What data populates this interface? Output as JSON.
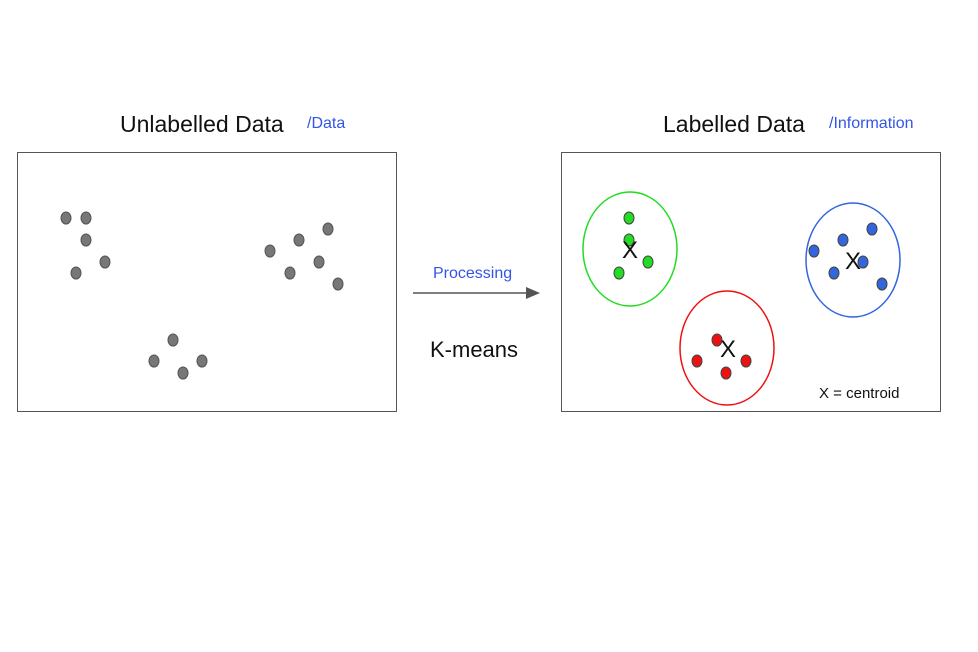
{
  "left": {
    "title": "Unlabelled Data",
    "tag": "/Data"
  },
  "right": {
    "title": "Labelled Data",
    "tag": "/Information"
  },
  "arrow": {
    "top_label": "Processing",
    "bottom_label": "K-means"
  },
  "legend": "X = centroid",
  "centroid_marker": "X",
  "colors": {
    "unlabelled_point": "#777777",
    "cluster_green": "#22dd22",
    "cluster_red": "#ee1111",
    "cluster_blue": "#3366dd",
    "accent_text": "#3355e6"
  }
}
